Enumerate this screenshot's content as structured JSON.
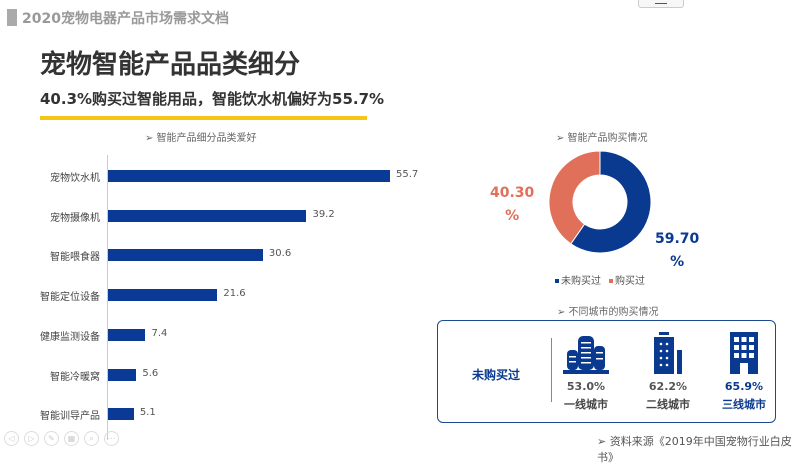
{
  "header": {
    "doc_title": "2020宠物电器产品市场需求文档"
  },
  "page": {
    "title": "宠物智能产品品类细分",
    "subtitle": "40.3%购买过智能用品，智能饮水机偏好为55.7%"
  },
  "sections": {
    "bar_title": "➢ 智能产品细分品类爱好",
    "pie_title": "➢ 智能产品购买情况",
    "city_title": "➢ 不同城市的购买情况",
    "source": "➢ 资料来源《2019年中国宠物行业白皮书》"
  },
  "chart_data": [
    {
      "type": "bar",
      "orientation": "horizontal",
      "title": "智能产品细分品类爱好",
      "categories": [
        "宠物饮水机",
        "宠物摄像机",
        "智能喂食器",
        "智能定位设备",
        "健康监测设备",
        "智能冷暖窝",
        "智能训导产品"
      ],
      "values": [
        55.7,
        39.2,
        30.6,
        21.6,
        7.4,
        5.6,
        5.1
      ],
      "value_labels": [
        "55.7",
        "39.2",
        "30.6",
        "21.6",
        "7.4",
        "5.6",
        "5.1"
      ],
      "color": "#0a3a96"
    },
    {
      "type": "pie",
      "donut": true,
      "title": "智能产品购买情况",
      "labels": [
        "未购买过",
        "购买过"
      ],
      "values": [
        59.7,
        40.3
      ],
      "value_labels": [
        "59.70",
        "40.30"
      ],
      "unit": "%",
      "colors": [
        "#0a3a8f",
        "#e07059"
      ],
      "legend": "bottom"
    }
  ],
  "city": {
    "label": "未购买过",
    "items": [
      {
        "pct": "53.0%",
        "name": "一线城市"
      },
      {
        "pct": "62.2%",
        "name": "二线城市"
      },
      {
        "pct": "65.9%",
        "name": "三线城市"
      }
    ]
  },
  "nav": {
    "icons": [
      "prev-icon",
      "next-icon",
      "pen-icon",
      "slides-icon",
      "zoom-icon",
      "more-icon"
    ],
    "glyphs": [
      "◁",
      "▷",
      "✎",
      "▦",
      "⌕",
      "⋯"
    ]
  }
}
